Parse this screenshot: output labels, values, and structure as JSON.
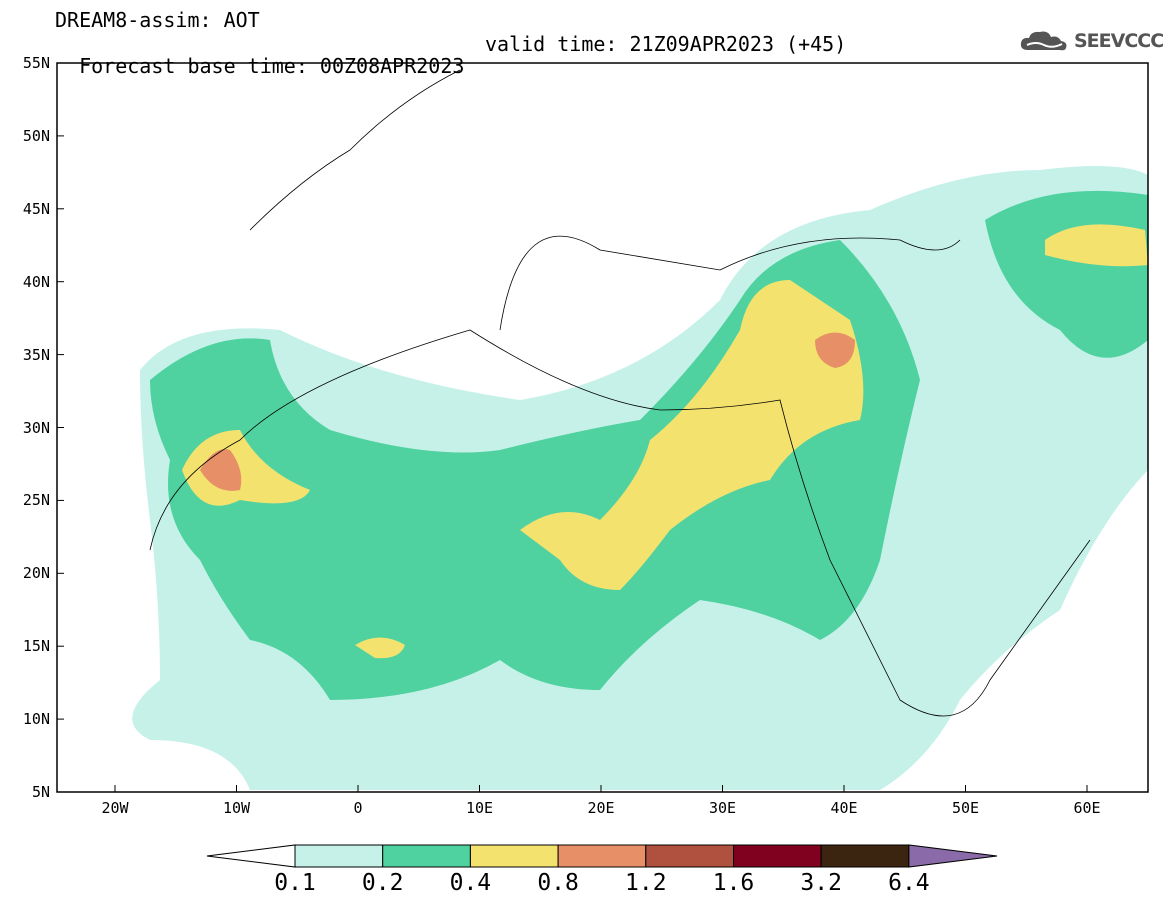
{
  "header": {
    "line1": "DREAM8-assim: AOT",
    "line2_base": "Forecast base time: 00Z08APR2023",
    "line2_valid": "valid time: 21Z09APR2023 (+45)",
    "logo_text": "SEEVCCC",
    "logo_icon": "cloud-icon"
  },
  "map": {
    "lat_labels": [
      "55N",
      "50N",
      "45N",
      "40N",
      "35N",
      "30N",
      "25N",
      "20N",
      "15N",
      "10N",
      "5N"
    ],
    "lon_labels": [
      "20W",
      "10W",
      "0",
      "10E",
      "20E",
      "30E",
      "40E",
      "50E",
      "60E"
    ]
  },
  "colorbar": {
    "labels": [
      "0.1",
      "0.2",
      "0.4",
      "0.8",
      "1.2",
      "1.6",
      "3.2",
      "6.4"
    ],
    "colors": [
      "#c5f1e9",
      "#4fd2a0",
      "#f4e26f",
      "#e78f66",
      "#b0503e",
      "#800020",
      "#3b2410",
      "#8a6aa8"
    ]
  }
}
